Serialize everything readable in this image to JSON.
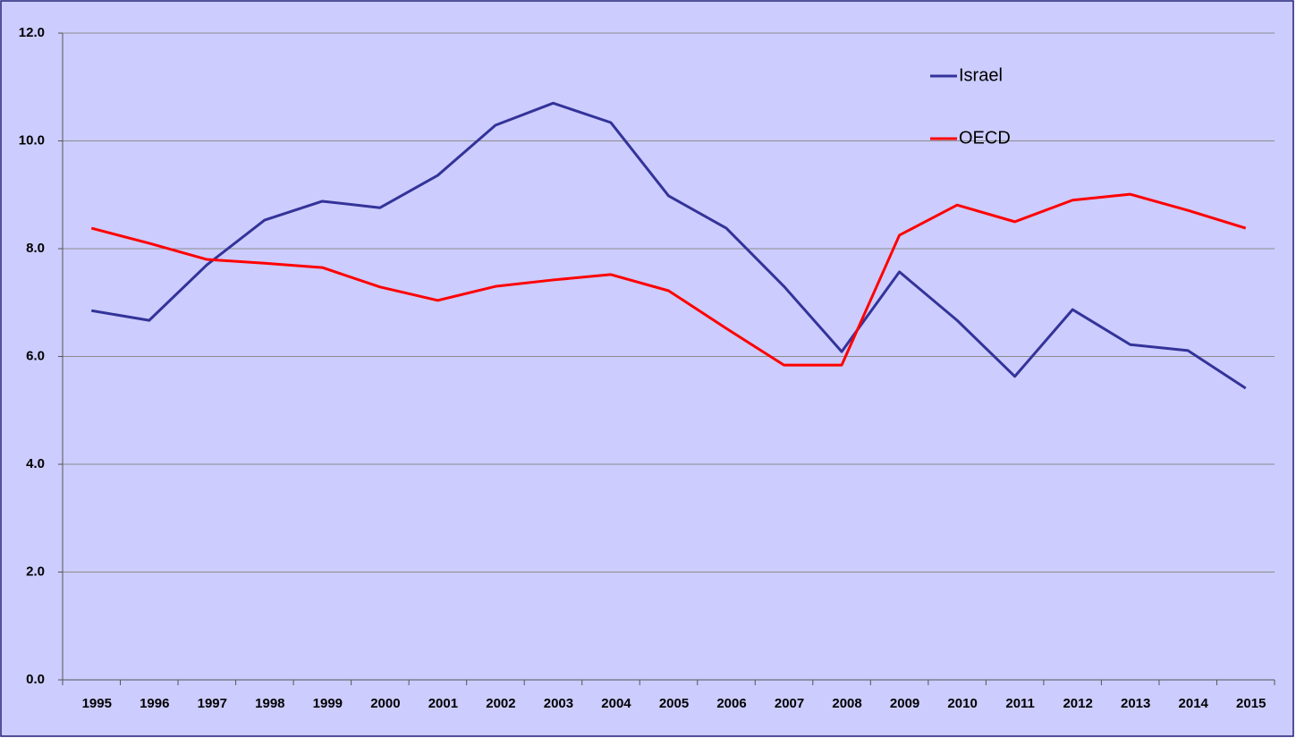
{
  "chart_data": {
    "type": "line",
    "categories": [
      "1995",
      "1996",
      "1997",
      "1998",
      "1999",
      "2000",
      "2001",
      "2002",
      "2003",
      "2004",
      "2005",
      "2006",
      "2007",
      "2008",
      "2009",
      "2010",
      "2011",
      "2012",
      "2013",
      "2014",
      "2015"
    ],
    "series": [
      {
        "name": "Israel",
        "color": "#333399",
        "values": [
          6.85,
          6.67,
          7.7,
          8.53,
          8.88,
          8.76,
          9.36,
          10.29,
          10.7,
          10.34,
          8.98,
          8.38,
          7.3,
          6.09,
          7.57,
          6.67,
          5.63,
          6.87,
          6.22,
          6.11,
          5.41
        ]
      },
      {
        "name": "OECD",
        "color": "#ff0000",
        "values": [
          8.38,
          8.1,
          7.8,
          7.73,
          7.65,
          7.29,
          7.04,
          7.3,
          7.42,
          7.52,
          7.22,
          6.52,
          5.84,
          5.84,
          8.25,
          8.81,
          8.5,
          8.9,
          9.01,
          8.71,
          8.38
        ]
      }
    ],
    "ylim": [
      0,
      12
    ],
    "yticks": [
      {
        "value": 0,
        "label": "0.0"
      },
      {
        "value": 2,
        "label": "2.0"
      },
      {
        "value": 4,
        "label": "4.0"
      },
      {
        "value": 6,
        "label": "6.0"
      },
      {
        "value": 8,
        "label": "8.0"
      },
      {
        "value": 10,
        "label": "10.0"
      },
      {
        "value": 12,
        "label": "12.0"
      }
    ],
    "grid": true,
    "legend": "upper right"
  }
}
